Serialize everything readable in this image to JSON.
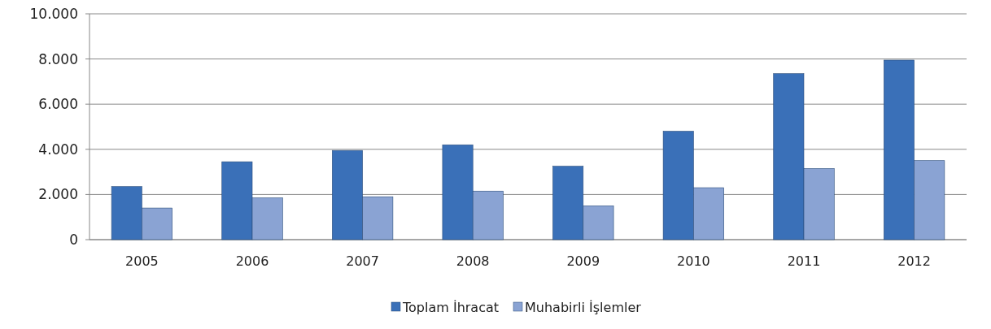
{
  "chart_data": {
    "type": "bar",
    "categories": [
      "2005",
      "2006",
      "2007",
      "2008",
      "2009",
      "2010",
      "2011",
      "2012"
    ],
    "series": [
      {
        "name": "Toplam İhracat",
        "color": "#3a70b8",
        "values": [
          2350,
          3450,
          3950,
          4200,
          3250,
          4800,
          7350,
          7950
        ]
      },
      {
        "name": "Muhabirli İşlemler",
        "color": "#8aa3d3",
        "values": [
          1400,
          1850,
          1900,
          2150,
          1500,
          2300,
          3150,
          3500
        ]
      }
    ],
    "ylim": [
      0,
      10000
    ],
    "yticks": [
      {
        "value": 0,
        "label": "0"
      },
      {
        "value": 2000,
        "label": "2.000"
      },
      {
        "value": 4000,
        "label": "4.000"
      },
      {
        "value": 6000,
        "label": "6.000"
      },
      {
        "value": 8000,
        "label": "8.000"
      },
      {
        "value": 10000,
        "label": "10.000"
      }
    ],
    "grid": "y",
    "legend": "bottom"
  }
}
